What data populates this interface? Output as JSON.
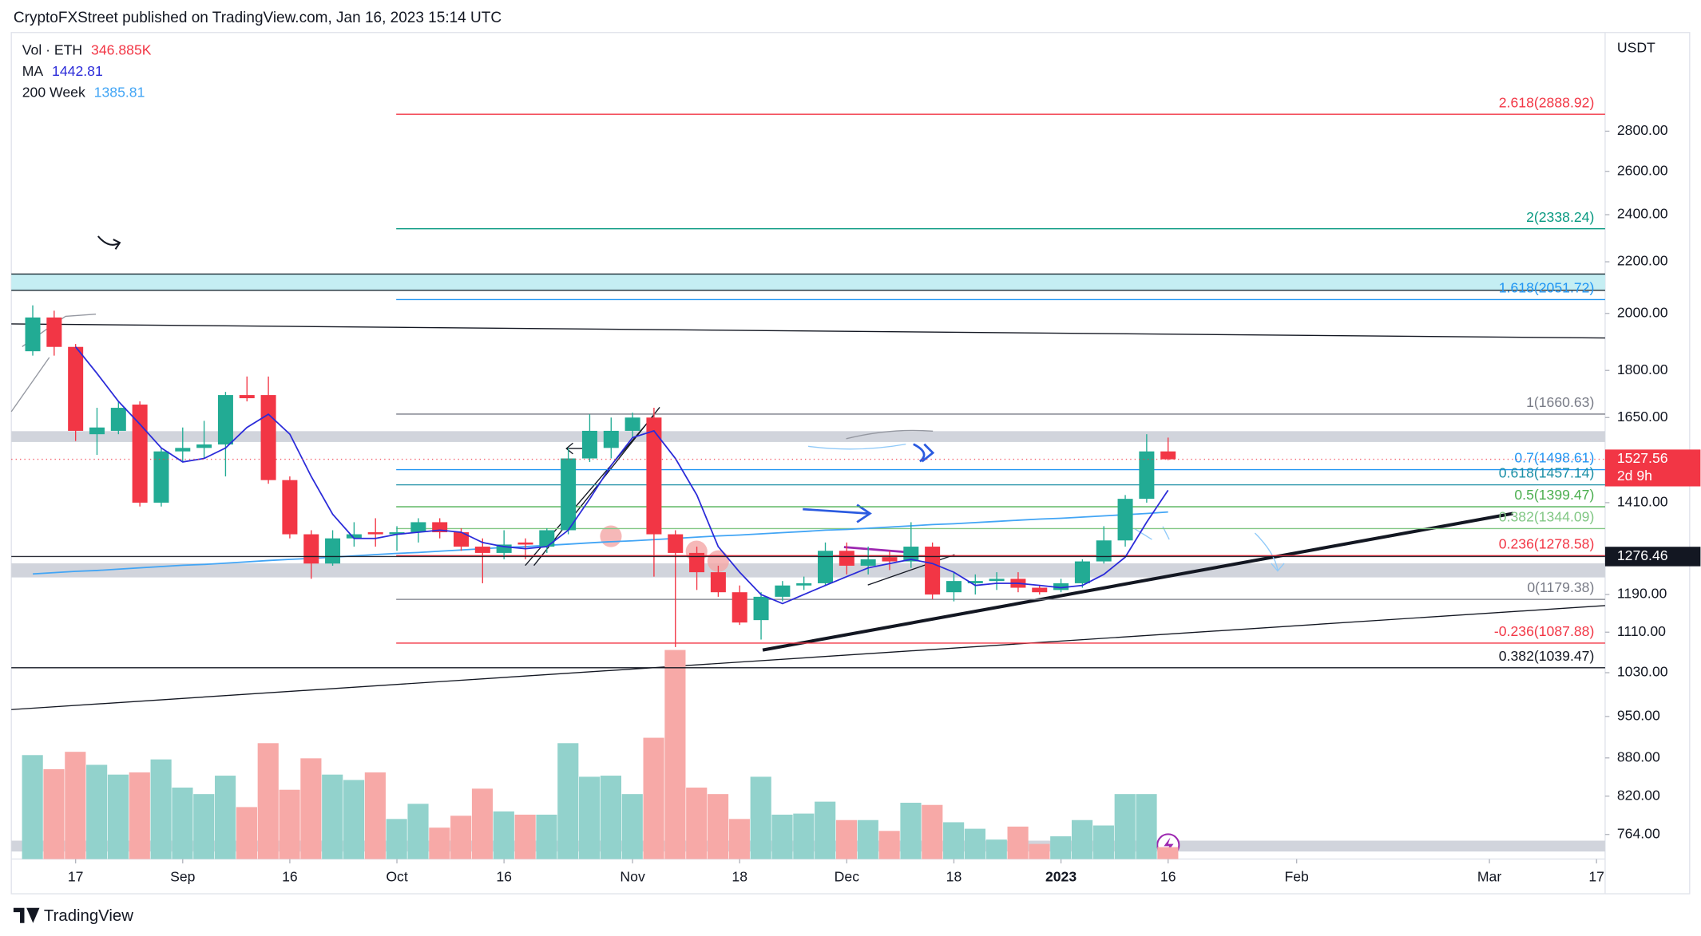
{
  "header": "CryptoFXStreet published on TradingView.com, Jan 16, 2023 15:14 UTC",
  "brand": "TradingView",
  "chart_data": {
    "type": "candlestick",
    "currency": "USDT",
    "log_scale": true,
    "up_color": "#22ab94",
    "down_color": "#f23645",
    "volume_up_color": "#92d2cc",
    "volume_down_color": "#f7a9a7",
    "ylim": [
      730,
      3360
    ],
    "yticks": [
      {
        "value": 2800,
        "label": "2800.00"
      },
      {
        "value": 2600,
        "label": "2600.00"
      },
      {
        "value": 2400,
        "label": "2400.00"
      },
      {
        "value": 2200,
        "label": "2200.00"
      },
      {
        "value": 2000,
        "label": "2000.00"
      },
      {
        "value": 1800,
        "label": "1800.00"
      },
      {
        "value": 1650,
        "label": "1650.00"
      },
      {
        "value": 1410,
        "label": "1410.00"
      },
      {
        "value": 1190,
        "label": "1190.00"
      },
      {
        "value": 1110,
        "label": "1110.00"
      },
      {
        "value": 1030,
        "label": "1030.00"
      },
      {
        "value": 950,
        "label": "950.00"
      },
      {
        "value": 880,
        "label": "880.00"
      },
      {
        "value": 820,
        "label": "820.00"
      },
      {
        "value": 764,
        "label": "764.00"
      }
    ],
    "xlim": [
      -1,
      73.4
    ],
    "xticks": [
      {
        "value": 2,
        "label": "17"
      },
      {
        "value": 7,
        "label": "Sep"
      },
      {
        "value": 12,
        "label": "16"
      },
      {
        "value": 17,
        "label": "Oct"
      },
      {
        "value": 22,
        "label": "16"
      },
      {
        "value": 28,
        "label": "Nov"
      },
      {
        "value": 33,
        "label": "18"
      },
      {
        "value": 38,
        "label": "Dec"
      },
      {
        "value": 43,
        "label": "18"
      },
      {
        "value": 48,
        "label": "2023"
      },
      {
        "value": 53,
        "label": "16"
      },
      {
        "value": 59,
        "label": "Feb"
      },
      {
        "value": 68,
        "label": "Mar"
      },
      {
        "value": 73,
        "label": "17"
      }
    ],
    "open": [
      1865,
      1985,
      1880,
      1600,
      1610,
      1690,
      1410,
      1550,
      1560,
      1570,
      1720,
      1720,
      1470,
      1330,
      1260,
      1320,
      1335,
      1330,
      1335,
      1360,
      1335,
      1300,
      1285,
      1310,
      1300,
      1340,
      1530,
      1560,
      1610,
      1650,
      1330,
      1285,
      1240,
      1195,
      1135,
      1185,
      1210,
      1215,
      1290,
      1255,
      1275,
      1265,
      1300,
      1195,
      1215,
      1220,
      1225,
      1205,
      1200,
      1215,
      1265,
      1315,
      1420,
      1550
    ],
    "high": [
      2030,
      2010,
      1890,
      1680,
      1700,
      1700,
      1560,
      1620,
      1640,
      1730,
      1780,
      1780,
      1480,
      1340,
      1340,
      1360,
      1370,
      1350,
      1370,
      1370,
      1345,
      1320,
      1340,
      1320,
      1345,
      1560,
      1660,
      1650,
      1665,
      1680,
      1340,
      1300,
      1255,
      1210,
      1195,
      1220,
      1230,
      1310,
      1310,
      1300,
      1290,
      1360,
      1310,
      1240,
      1235,
      1240,
      1240,
      1210,
      1225,
      1270,
      1350,
      1430,
      1600,
      1590
    ],
    "low": [
      1850,
      1850,
      1580,
      1540,
      1600,
      1400,
      1400,
      1520,
      1530,
      1480,
      1700,
      1460,
      1320,
      1225,
      1255,
      1300,
      1300,
      1290,
      1310,
      1320,
      1290,
      1215,
      1270,
      1270,
      1285,
      1330,
      1520,
      1530,
      1590,
      1230,
      1080,
      1200,
      1185,
      1125,
      1095,
      1175,
      1200,
      1210,
      1235,
      1235,
      1245,
      1250,
      1180,
      1175,
      1190,
      1200,
      1195,
      1190,
      1195,
      1205,
      1260,
      1300,
      1410,
      1525
    ],
    "close": [
      1985,
      1880,
      1610,
      1620,
      1680,
      1410,
      1550,
      1560,
      1570,
      1720,
      1710,
      1470,
      1330,
      1260,
      1320,
      1330,
      1330,
      1335,
      1360,
      1335,
      1300,
      1285,
      1305,
      1305,
      1340,
      1530,
      1610,
      1610,
      1650,
      1330,
      1285,
      1240,
      1195,
      1130,
      1185,
      1210,
      1215,
      1290,
      1255,
      1270,
      1265,
      1300,
      1190,
      1220,
      1220,
      1225,
      1205,
      1195,
      1215,
      1265,
      1315,
      1420,
      1550,
      1527.56
    ],
    "volume": {
      "name": "Vol · ETH",
      "last_label": "346.885K",
      "color": "#f23645",
      "ylim": [
        0,
        6300000
      ],
      "values": [
        3024000,
        2615000,
        3119000,
        2741000,
        2457000,
        2520000,
        2898000,
        2079000,
        1890000,
        2426000,
        1512000,
        3371000,
        2016000,
        2930000,
        2457000,
        2300000,
        2520000,
        1166000,
        1607000,
        914000,
        1260000,
        2048000,
        1386000,
        1292000,
        1292000,
        3371000,
        2394000,
        2426000,
        1890000,
        3528000,
        6080000,
        2079000,
        1890000,
        1166000,
        2394000,
        1292000,
        1323000,
        1670000,
        1134000,
        1134000,
        819000,
        1638000,
        1575000,
        1071000,
        882000,
        567000,
        945000,
        441000,
        662000,
        1134000,
        977000,
        1890000,
        1890000,
        346885
      ]
    },
    "ma": {
      "name": "MA",
      "last": 1442.81,
      "color": "#2b2bd9",
      "values": [
        null,
        null,
        1880,
        1790,
        1700,
        1630,
        1560,
        1520,
        1530,
        1560,
        1620,
        1660,
        1600,
        1480,
        1380,
        1320,
        1320,
        1330,
        1335,
        1340,
        1335,
        1310,
        1300,
        1295,
        1300,
        1340,
        1420,
        1510,
        1590,
        1610,
        1530,
        1430,
        1300,
        1240,
        1190,
        1170,
        1190,
        1210,
        1230,
        1250,
        1260,
        1270,
        1260,
        1240,
        1210,
        1215,
        1215,
        1210,
        1205,
        1210,
        1235,
        1275,
        1360,
        1442.81
      ]
    },
    "wma200": {
      "name": "200 Week",
      "last": 1385.81,
      "color": "#42a5f5",
      "values": [
        1236,
        1239,
        1242,
        1244,
        1247,
        1250,
        1253,
        1256,
        1258,
        1261,
        1264,
        1267,
        1270,
        1272,
        1275,
        1278,
        1281,
        1284,
        1286,
        1289,
        1292,
        1295,
        1298,
        1300,
        1303,
        1306,
        1309,
        1312,
        1314,
        1317,
        1320,
        1323,
        1326,
        1328,
        1331,
        1334,
        1337,
        1340,
        1342,
        1345,
        1348,
        1351,
        1354,
        1356,
        1359,
        1362,
        1365,
        1368,
        1370,
        1373,
        1376,
        1379,
        1382,
        1385.81
      ]
    },
    "levels": [
      {
        "value": 2888.92,
        "label": "2.618(2888.92)",
        "color": "#f23645"
      },
      {
        "value": 2338.24,
        "label": "2(2338.24)",
        "color": "#089981"
      },
      {
        "value": 2051.72,
        "label": "1.618(2051.72)",
        "color": "#2196f3"
      },
      {
        "value": 1660.63,
        "label": "1(1660.63)",
        "color": "#787b86"
      },
      {
        "value": 1498.61,
        "label": "0.7(1498.61)",
        "color": "#2196f3"
      },
      {
        "value": 1457.14,
        "label": "0.618(1457.14)",
        "color": "#1b8fa6"
      },
      {
        "value": 1399.47,
        "label": "0.5(1399.47)",
        "color": "#4caf50"
      },
      {
        "value": 1344.09,
        "label": "0.382(1344.09)",
        "color": "#81c784"
      },
      {
        "value": 1278.58,
        "label": "0.236(1278.58)",
        "color": "#f23645"
      },
      {
        "value": 1179.38,
        "label": "0(1179.38)",
        "color": "#787b86"
      },
      {
        "value": 1087.88,
        "label": "-0.236(1087.88)",
        "color": "#f23645"
      },
      {
        "value": 1039.47,
        "label": "0.382(1039.47)",
        "color": "#131722",
        "full": true
      }
    ],
    "price_tags": [
      {
        "value": 1527.56,
        "countdown": "2d 9h",
        "color": "#f23645"
      },
      {
        "value": 1276.46,
        "color": "#131722"
      }
    ]
  }
}
